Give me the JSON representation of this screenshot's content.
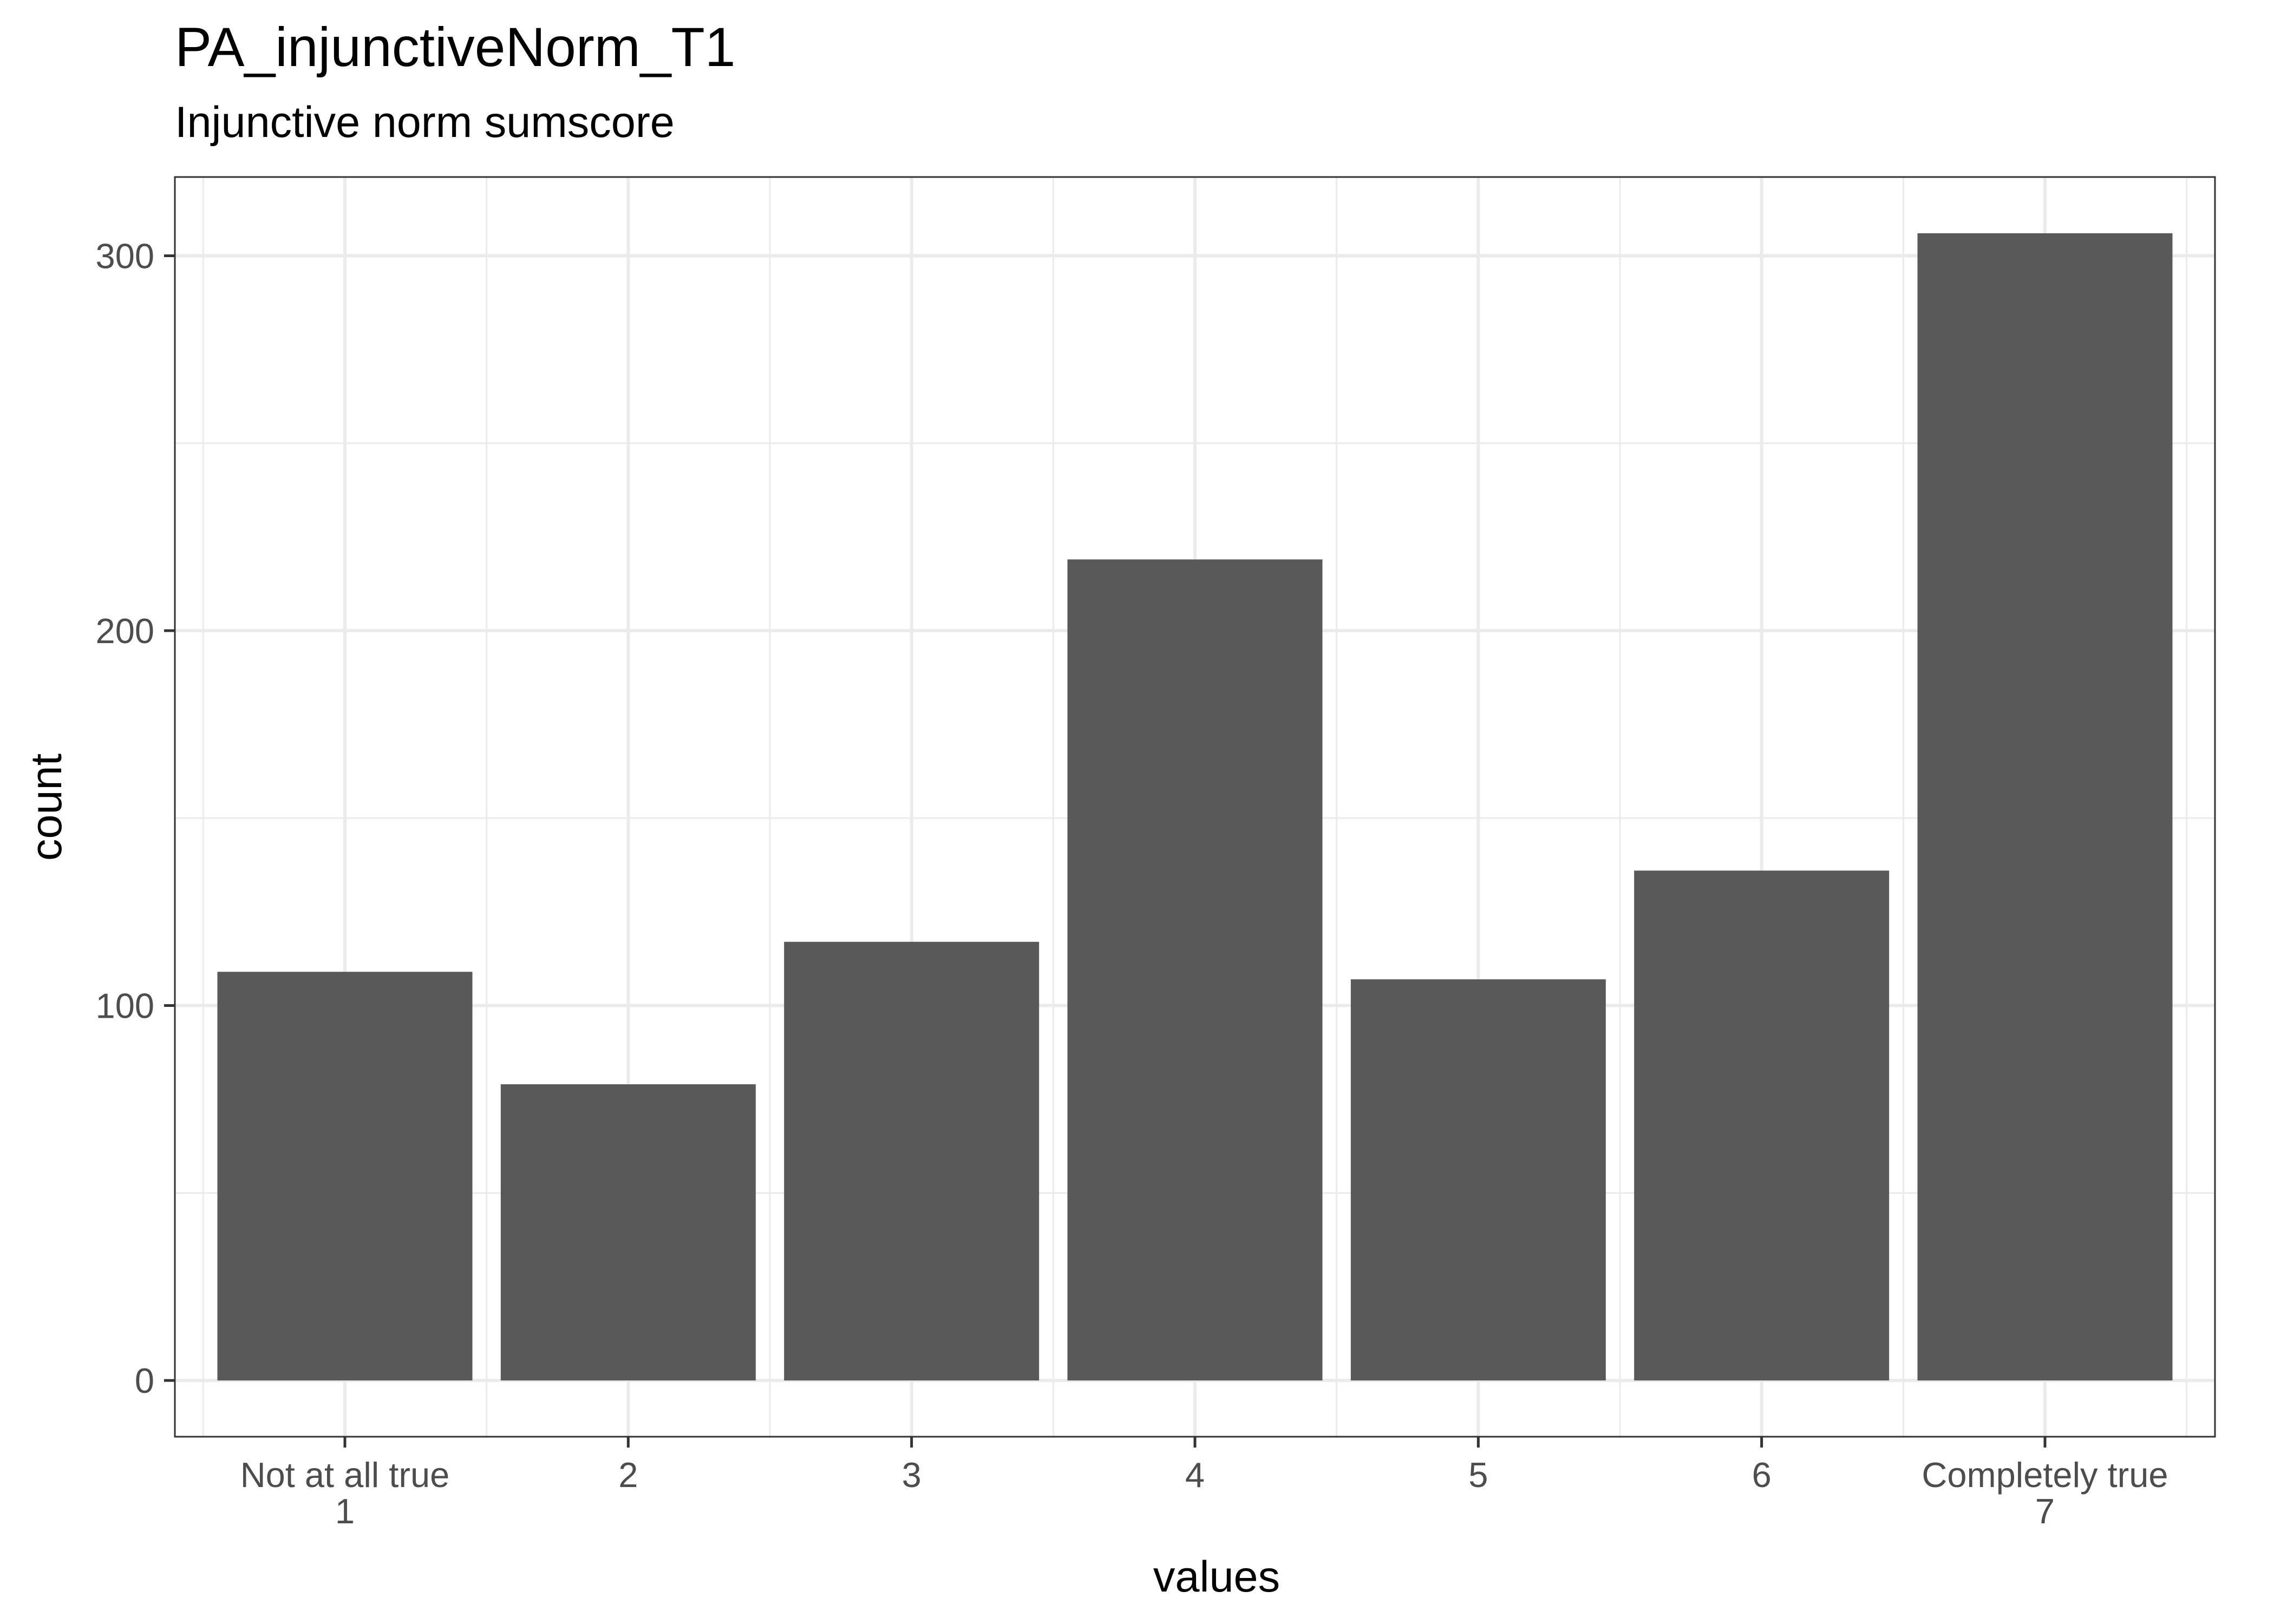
{
  "chart_data": {
    "type": "bar",
    "title": "PA_injunctiveNorm_T1",
    "subtitle": "Injunctive norm sumscore",
    "xlabel": "values",
    "ylabel": "count",
    "categories": [
      [
        "Not at all true",
        "1"
      ],
      [
        "2"
      ],
      [
        "3"
      ],
      [
        "4"
      ],
      [
        "5"
      ],
      [
        "6"
      ],
      [
        "Completely true",
        "7"
      ]
    ],
    "values": [
      109,
      79,
      117,
      219,
      107,
      136,
      306
    ],
    "ylim": [
      -15,
      321
    ],
    "yticks": [
      0,
      100,
      200,
      300
    ],
    "yminor": [
      50,
      150,
      250
    ],
    "grid": true,
    "bar_color": "#595959",
    "legend": "none"
  }
}
